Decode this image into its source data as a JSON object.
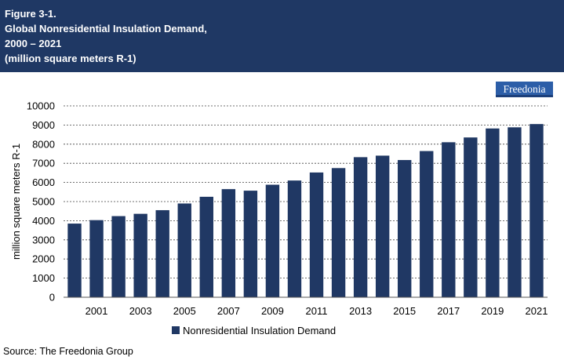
{
  "header": {
    "figure_label": "Figure 3-1.",
    "title_line1": "Global Nonresidential Insulation Demand,",
    "title_line2": "2000 – 2021",
    "title_line3": "(million square meters R-1)"
  },
  "logo": {
    "text": "Freedonia"
  },
  "source": "Source: The Freedonia Group",
  "colors": {
    "header_bg": "#1f3864",
    "bar": "#203864",
    "logo_bg": "#2c5ea8"
  },
  "chart_data": {
    "type": "bar",
    "categories": [
      "2000",
      "2001",
      "2002",
      "2003",
      "2004",
      "2005",
      "2006",
      "2007",
      "2008",
      "2009",
      "2010",
      "2011",
      "2012",
      "2013",
      "2014",
      "2015",
      "2016",
      "2017",
      "2018",
      "2019",
      "2020",
      "2021"
    ],
    "x_tick_labels": [
      "2001",
      "2003",
      "2005",
      "2007",
      "2009",
      "2011",
      "2013",
      "2015",
      "2017",
      "2019",
      "2021"
    ],
    "series": [
      {
        "name": "Nonresidential Insulation Demand",
        "values": [
          3850,
          4030,
          4240,
          4360,
          4550,
          4900,
          5250,
          5650,
          5570,
          5880,
          6100,
          6520,
          6750,
          7320,
          7400,
          7170,
          7640,
          8100,
          8350,
          8820,
          8880,
          9050
        ]
      }
    ],
    "ylabel": "million square meters R-1",
    "xlabel": "",
    "ylim": [
      0,
      10000
    ],
    "yticks": [
      0,
      1000,
      2000,
      3000,
      4000,
      5000,
      6000,
      7000,
      8000,
      9000,
      10000
    ],
    "grid": "horizontal dotted",
    "legend": "bottom-center"
  }
}
